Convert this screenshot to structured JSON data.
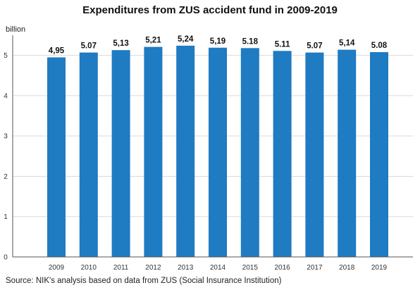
{
  "chart_data": {
    "type": "bar",
    "title": "Expenditures from ZUS accident fund in 2009-2019",
    "ylabel": "billion",
    "xlabel": "",
    "categories": [
      "2009",
      "2010",
      "2011",
      "2012",
      "2013",
      "2014",
      "2015",
      "2016",
      "2017",
      "2018",
      "2019"
    ],
    "values": [
      4.95,
      5.07,
      5.13,
      5.21,
      5.24,
      5.19,
      5.18,
      5.11,
      5.07,
      5.14,
      5.08
    ],
    "value_labels": [
      "4,95",
      "5.07",
      "5,13",
      "5,21",
      "5,24",
      "5,19",
      "5.18",
      "5.11",
      "5.07",
      "5,14",
      "5.08"
    ],
    "ylim": [
      0,
      5.5
    ],
    "yticks": [
      0,
      1,
      2,
      3,
      4,
      5
    ],
    "ytick_labels": [
      "0",
      "1",
      "2",
      "3",
      "4",
      "5"
    ],
    "grid": true,
    "bar_color": "#1f7bc2",
    "grid_color": "#d9d9d9",
    "source": "Source: NIK's analysis based on data from ZUS (Social Insurance Institution)"
  }
}
